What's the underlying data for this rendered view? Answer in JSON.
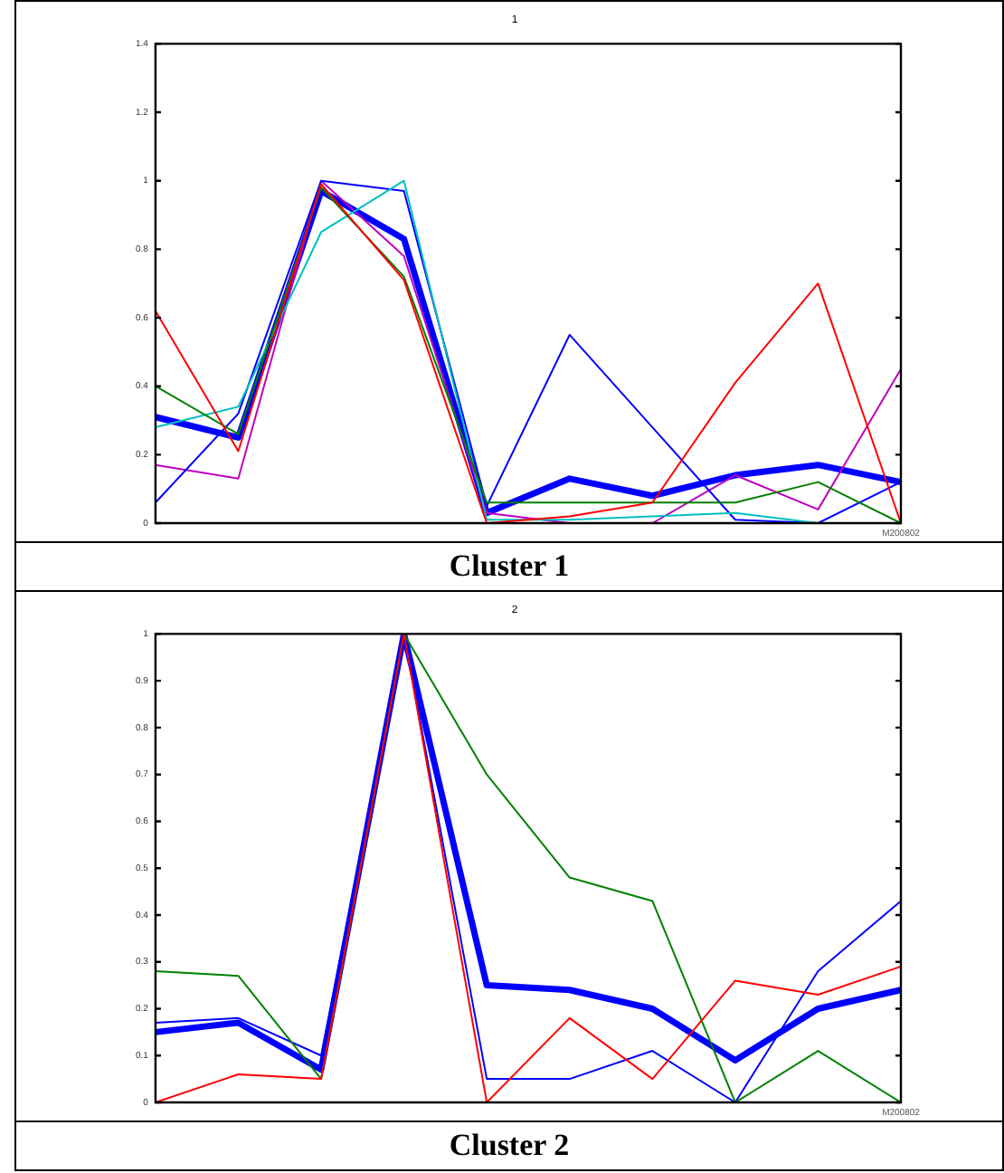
{
  "chart_data": [
    {
      "type": "line",
      "title": "1",
      "categories": [
        null,
        null,
        null,
        null,
        null,
        null,
        null,
        null,
        null,
        null
      ],
      "ylim": [
        0,
        1.4
      ],
      "yticks": [
        0,
        0.2,
        0.4,
        0.6,
        0.8,
        1,
        1.2,
        1.4
      ],
      "grid": false,
      "legend": false,
      "tick_labels": "y",
      "marker": "none",
      "line_style": "solid",
      "series": [
        {
          "color": "#ff0000",
          "values": [
            0.62,
            0.21,
            0.99,
            0.71,
            0,
            0.02,
            0.06,
            0.41,
            0.7,
            0
          ]
        },
        {
          "color": "#008000",
          "values": [
            0.4,
            0.26,
            0.98,
            0.72,
            0.06,
            0.06,
            0.06,
            0.06,
            0.12,
            0
          ]
        },
        {
          "color": "#00bfbf",
          "values": [
            0.28,
            0.34,
            0.85,
            1,
            0.01,
            0.01,
            0.02,
            0.03,
            0,
            0
          ]
        },
        {
          "color": "#0000ff",
          "values": [
            0.06,
            0.32,
            1,
            0.97,
            0.05,
            0.55,
            0.28,
            0.01,
            0,
            0.12
          ]
        },
        {
          "color": "#bf00bf",
          "values": [
            0.17,
            0.13,
            1,
            0.78,
            0.03,
            0,
            0,
            0.14,
            0.04,
            0.45
          ]
        },
        {
          "color": "#0000ff",
          "values": [
            0.31,
            0.25,
            0.97,
            0.83,
            0.03,
            0.13,
            0.08,
            0.14,
            0.17,
            0.12
          ]
        }
      ],
      "annotations": [
        "M200802",
        "Cluster 1"
      ]
    },
    {
      "type": "line",
      "title": "2",
      "categories": [
        null,
        null,
        null,
        null,
        null,
        null,
        null,
        null,
        null,
        null
      ],
      "ylim": [
        0,
        1
      ],
      "yticks": [
        0,
        0.1,
        0.2,
        0.3,
        0.4,
        0.5,
        0.6,
        0.7,
        0.8,
        0.9,
        1
      ],
      "grid": false,
      "legend": false,
      "tick_labels": "y",
      "marker": "none",
      "line_style": "solid",
      "series": [
        {
          "color": "#ff0000",
          "values": [
            0,
            0.06,
            0.05,
            1,
            0,
            0.18,
            0.05,
            0.26,
            0.23,
            0.29
          ]
        },
        {
          "color": "#008000",
          "values": [
            0.28,
            0.27,
            0.05,
            1,
            0.7,
            0.48,
            0.43,
            0,
            0.11,
            0
          ]
        },
        {
          "color": "#0000ff",
          "values": [
            0.17,
            0.18,
            0.1,
            1,
            0.05,
            0.05,
            0.11,
            0,
            0.28,
            0.43
          ]
        },
        {
          "color": "#0000ff",
          "values": [
            0.15,
            0.17,
            0.07,
            1,
            0.25,
            0.24,
            0.2,
            0.09,
            0.2,
            0.24
          ]
        }
      ],
      "annotations": [
        "M200802",
        "Cluster 2"
      ]
    }
  ]
}
